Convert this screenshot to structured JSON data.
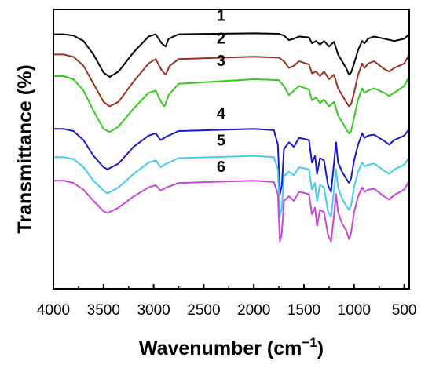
{
  "chart_data": {
    "type": "line",
    "xlabel": "Wavenumber (cm",
    "xlabel_sup": "−1",
    "xlabel_close": ")",
    "ylabel": "Transmittance (%)",
    "xlim": [
      4000,
      450
    ],
    "x_reversed": true,
    "x_ticks": [
      4000,
      3500,
      3000,
      2500,
      2000,
      1500,
      1000,
      500
    ],
    "x_tick_labels": [
      "4000",
      "3500",
      "3000",
      "2500",
      "2000",
      "1500",
      "1000",
      "500"
    ],
    "y_ticks_shown": false,
    "grid": false,
    "legend": "none",
    "ylim": [
      0,
      6.2
    ],
    "series": [
      {
        "name": "1",
        "color": "#000000",
        "label_x": 2500,
        "label_y": 6.05,
        "points": [
          [
            4000,
            5.65
          ],
          [
            3900,
            5.65
          ],
          [
            3800,
            5.62
          ],
          [
            3700,
            5.5
          ],
          [
            3600,
            5.2
          ],
          [
            3500,
            4.8
          ],
          [
            3440,
            4.7
          ],
          [
            3350,
            4.82
          ],
          [
            3200,
            5.25
          ],
          [
            3050,
            5.6
          ],
          [
            2980,
            5.65
          ],
          [
            2920,
            5.45
          ],
          [
            2880,
            5.38
          ],
          [
            2850,
            5.55
          ],
          [
            2750,
            5.65
          ],
          [
            2000,
            5.67
          ],
          [
            1750,
            5.66
          ],
          [
            1700,
            5.62
          ],
          [
            1650,
            5.52
          ],
          [
            1600,
            5.55
          ],
          [
            1550,
            5.6
          ],
          [
            1450,
            5.58
          ],
          [
            1420,
            5.45
          ],
          [
            1380,
            5.5
          ],
          [
            1340,
            5.42
          ],
          [
            1300,
            5.5
          ],
          [
            1250,
            5.38
          ],
          [
            1200,
            5.48
          ],
          [
            1160,
            5.2
          ],
          [
            1120,
            5.05
          ],
          [
            1080,
            4.9
          ],
          [
            1050,
            4.75
          ],
          [
            1030,
            4.8
          ],
          [
            1000,
            5.0
          ],
          [
            960,
            5.3
          ],
          [
            920,
            5.5
          ],
          [
            895,
            5.45
          ],
          [
            860,
            5.55
          ],
          [
            800,
            5.6
          ],
          [
            700,
            5.55
          ],
          [
            600,
            5.5
          ],
          [
            500,
            5.55
          ],
          [
            450,
            5.65
          ]
        ]
      },
      {
        "name": "2",
        "color": "#a0301e",
        "label_x": 2500,
        "label_y": 5.55,
        "points": [
          [
            4000,
            5.2
          ],
          [
            3900,
            5.2
          ],
          [
            3800,
            5.15
          ],
          [
            3700,
            4.95
          ],
          [
            3600,
            4.55
          ],
          [
            3500,
            4.15
          ],
          [
            3440,
            4.05
          ],
          [
            3350,
            4.15
          ],
          [
            3200,
            4.6
          ],
          [
            3050,
            5.0
          ],
          [
            2980,
            5.1
          ],
          [
            2920,
            4.85
          ],
          [
            2880,
            4.75
          ],
          [
            2840,
            4.95
          ],
          [
            2750,
            5.1
          ],
          [
            2000,
            5.15
          ],
          [
            1750,
            5.13
          ],
          [
            1700,
            5.05
          ],
          [
            1650,
            4.9
          ],
          [
            1600,
            4.95
          ],
          [
            1550,
            5.05
          ],
          [
            1450,
            4.98
          ],
          [
            1420,
            4.78
          ],
          [
            1380,
            4.82
          ],
          [
            1340,
            4.72
          ],
          [
            1300,
            4.82
          ],
          [
            1250,
            4.65
          ],
          [
            1200,
            4.75
          ],
          [
            1160,
            4.45
          ],
          [
            1120,
            4.3
          ],
          [
            1080,
            4.15
          ],
          [
            1050,
            4.05
          ],
          [
            1030,
            4.1
          ],
          [
            1000,
            4.35
          ],
          [
            960,
            4.75
          ],
          [
            920,
            5.0
          ],
          [
            895,
            4.9
          ],
          [
            860,
            5.0
          ],
          [
            800,
            5.05
          ],
          [
            700,
            4.88
          ],
          [
            650,
            4.82
          ],
          [
            600,
            4.9
          ],
          [
            500,
            5.0
          ],
          [
            450,
            5.2
          ]
        ]
      },
      {
        "name": "3",
        "color": "#33cc1a",
        "label_x": 2500,
        "label_y": 5.05,
        "points": [
          [
            4000,
            4.72
          ],
          [
            3900,
            4.72
          ],
          [
            3800,
            4.65
          ],
          [
            3700,
            4.4
          ],
          [
            3600,
            3.95
          ],
          [
            3500,
            3.55
          ],
          [
            3440,
            3.48
          ],
          [
            3350,
            3.6
          ],
          [
            3200,
            4.0
          ],
          [
            3050,
            4.35
          ],
          [
            2980,
            4.4
          ],
          [
            2920,
            4.12
          ],
          [
            2890,
            4.05
          ],
          [
            2850,
            4.3
          ],
          [
            2750,
            4.55
          ],
          [
            2000,
            4.65
          ],
          [
            1750,
            4.63
          ],
          [
            1700,
            4.5
          ],
          [
            1650,
            4.3
          ],
          [
            1600,
            4.4
          ],
          [
            1550,
            4.5
          ],
          [
            1450,
            4.42
          ],
          [
            1420,
            4.18
          ],
          [
            1380,
            4.25
          ],
          [
            1340,
            4.12
          ],
          [
            1300,
            4.2
          ],
          [
            1250,
            4.05
          ],
          [
            1200,
            4.15
          ],
          [
            1160,
            3.85
          ],
          [
            1120,
            3.7
          ],
          [
            1080,
            3.55
          ],
          [
            1050,
            3.45
          ],
          [
            1030,
            3.5
          ],
          [
            1000,
            3.8
          ],
          [
            960,
            4.2
          ],
          [
            920,
            4.45
          ],
          [
            895,
            4.35
          ],
          [
            860,
            4.4
          ],
          [
            800,
            4.45
          ],
          [
            700,
            4.35
          ],
          [
            650,
            4.28
          ],
          [
            600,
            4.35
          ],
          [
            500,
            4.5
          ],
          [
            450,
            4.72
          ]
        ]
      },
      {
        "name": "4",
        "color": "#1a1acc",
        "label_x": 2500,
        "label_y": 3.88,
        "points": [
          [
            4000,
            3.55
          ],
          [
            3900,
            3.55
          ],
          [
            3800,
            3.5
          ],
          [
            3700,
            3.3
          ],
          [
            3600,
            2.95
          ],
          [
            3500,
            2.7
          ],
          [
            3460,
            2.65
          ],
          [
            3350,
            2.78
          ],
          [
            3200,
            3.15
          ],
          [
            3050,
            3.4
          ],
          [
            2980,
            3.45
          ],
          [
            2930,
            3.3
          ],
          [
            2870,
            3.38
          ],
          [
            2750,
            3.5
          ],
          [
            2000,
            3.55
          ],
          [
            1800,
            3.52
          ],
          [
            1760,
            3.2
          ],
          [
            1740,
            2.1
          ],
          [
            1720,
            2.3
          ],
          [
            1700,
            3.1
          ],
          [
            1650,
            3.25
          ],
          [
            1600,
            3.15
          ],
          [
            1550,
            3.35
          ],
          [
            1450,
            3.3
          ],
          [
            1420,
            2.8
          ],
          [
            1390,
            2.95
          ],
          [
            1370,
            2.55
          ],
          [
            1340,
            2.9
          ],
          [
            1300,
            2.85
          ],
          [
            1260,
            2.3
          ],
          [
            1230,
            2.15
          ],
          [
            1200,
            2.8
          ],
          [
            1180,
            3.25
          ],
          [
            1160,
            2.8
          ],
          [
            1120,
            2.6
          ],
          [
            1080,
            2.45
          ],
          [
            1050,
            2.35
          ],
          [
            1030,
            2.45
          ],
          [
            1000,
            2.85
          ],
          [
            960,
            3.2
          ],
          [
            920,
            3.45
          ],
          [
            895,
            3.35
          ],
          [
            860,
            3.4
          ],
          [
            800,
            3.42
          ],
          [
            700,
            3.28
          ],
          [
            650,
            3.2
          ],
          [
            600,
            3.3
          ],
          [
            500,
            3.4
          ],
          [
            450,
            3.55
          ]
        ]
      },
      {
        "name": "5",
        "color": "#44ccee",
        "label_x": 2500,
        "label_y": 3.28,
        "points": [
          [
            4000,
            2.92
          ],
          [
            3900,
            2.92
          ],
          [
            3800,
            2.88
          ],
          [
            3700,
            2.7
          ],
          [
            3600,
            2.4
          ],
          [
            3500,
            2.18
          ],
          [
            3460,
            2.12
          ],
          [
            3350,
            2.25
          ],
          [
            3200,
            2.55
          ],
          [
            3050,
            2.8
          ],
          [
            2980,
            2.85
          ],
          [
            2930,
            2.7
          ],
          [
            2870,
            2.78
          ],
          [
            2750,
            2.9
          ],
          [
            2000,
            2.95
          ],
          [
            1800,
            2.92
          ],
          [
            1760,
            2.65
          ],
          [
            1740,
            1.6
          ],
          [
            1720,
            1.8
          ],
          [
            1700,
            2.5
          ],
          [
            1650,
            2.6
          ],
          [
            1600,
            2.52
          ],
          [
            1550,
            2.7
          ],
          [
            1450,
            2.65
          ],
          [
            1420,
            2.2
          ],
          [
            1390,
            2.35
          ],
          [
            1370,
            1.95
          ],
          [
            1340,
            2.3
          ],
          [
            1300,
            2.25
          ],
          [
            1260,
            1.72
          ],
          [
            1230,
            1.6
          ],
          [
            1200,
            2.2
          ],
          [
            1180,
            2.65
          ],
          [
            1160,
            2.25
          ],
          [
            1120,
            2.0
          ],
          [
            1080,
            1.85
          ],
          [
            1050,
            1.75
          ],
          [
            1030,
            1.85
          ],
          [
            1000,
            2.25
          ],
          [
            960,
            2.6
          ],
          [
            920,
            2.8
          ],
          [
            895,
            2.72
          ],
          [
            860,
            2.75
          ],
          [
            800,
            2.78
          ],
          [
            700,
            2.62
          ],
          [
            650,
            2.55
          ],
          [
            600,
            2.65
          ],
          [
            500,
            2.75
          ],
          [
            450,
            2.92
          ]
        ]
      },
      {
        "name": "6",
        "color": "#cc44dd",
        "label_x": 2500,
        "label_y": 2.7,
        "points": [
          [
            4000,
            2.4
          ],
          [
            3900,
            2.4
          ],
          [
            3800,
            2.35
          ],
          [
            3700,
            2.2
          ],
          [
            3600,
            1.95
          ],
          [
            3500,
            1.72
          ],
          [
            3460,
            1.68
          ],
          [
            3350,
            1.8
          ],
          [
            3200,
            2.05
          ],
          [
            3050,
            2.25
          ],
          [
            2980,
            2.3
          ],
          [
            2930,
            2.18
          ],
          [
            2870,
            2.25
          ],
          [
            2750,
            2.35
          ],
          [
            2000,
            2.4
          ],
          [
            1800,
            2.37
          ],
          [
            1760,
            2.1
          ],
          [
            1740,
            1.05
          ],
          [
            1720,
            1.25
          ],
          [
            1700,
            1.95
          ],
          [
            1650,
            2.05
          ],
          [
            1600,
            1.95
          ],
          [
            1550,
            2.15
          ],
          [
            1450,
            2.1
          ],
          [
            1420,
            1.65
          ],
          [
            1390,
            1.8
          ],
          [
            1370,
            1.4
          ],
          [
            1340,
            1.75
          ],
          [
            1300,
            1.7
          ],
          [
            1260,
            1.2
          ],
          [
            1230,
            1.05
          ],
          [
            1200,
            1.65
          ],
          [
            1180,
            2.1
          ],
          [
            1160,
            1.7
          ],
          [
            1120,
            1.45
          ],
          [
            1080,
            1.3
          ],
          [
            1050,
            1.1
          ],
          [
            1030,
            1.25
          ],
          [
            1000,
            1.7
          ],
          [
            960,
            2.05
          ],
          [
            920,
            2.25
          ],
          [
            895,
            2.15
          ],
          [
            860,
            2.2
          ],
          [
            800,
            2.22
          ],
          [
            700,
            2.05
          ],
          [
            650,
            1.98
          ],
          [
            600,
            2.08
          ],
          [
            500,
            2.2
          ],
          [
            450,
            2.4
          ]
        ]
      }
    ]
  }
}
